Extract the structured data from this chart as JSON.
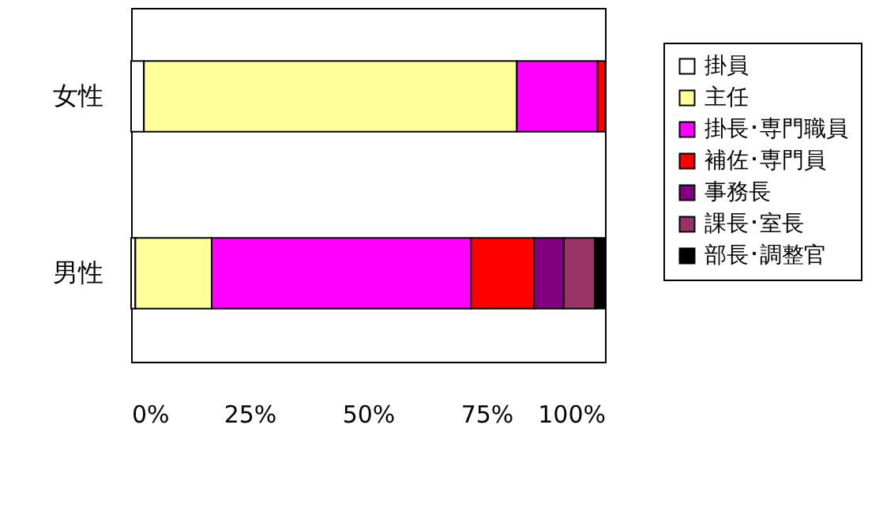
{
  "chart_data": {
    "type": "bar",
    "orientation": "horizontal",
    "stacked": true,
    "categories": [
      "女性",
      "男性"
    ],
    "series": [
      {
        "name": "掛員",
        "color": "#ffffff",
        "values": [
          2.7,
          0.9
        ]
      },
      {
        "name": "主任",
        "color": "#ffff99",
        "values": [
          78.7,
          16.1
        ]
      },
      {
        "name": "掛長･専門職員",
        "color": "#ff00ff",
        "values": [
          17.0,
          54.7
        ]
      },
      {
        "name": "補佐･専門員",
        "color": "#ff0000",
        "values": [
          1.6,
          13.3
        ]
      },
      {
        "name": "事務長",
        "color": "#800080",
        "values": [
          null,
          6.3
        ]
      },
      {
        "name": "課長･室長",
        "color": "#993366",
        "values": [
          null,
          6.6
        ]
      },
      {
        "name": "部長･調整官",
        "color": "#000000",
        "values": [
          null,
          2.1
        ]
      }
    ],
    "xlim": [
      0,
      100
    ],
    "xticks": [
      {
        "value": 0,
        "label": "0%"
      },
      {
        "value": 25,
        "label": "25%"
      },
      {
        "value": 50,
        "label": "50%"
      },
      {
        "value": 75,
        "label": "75%"
      },
      {
        "value": 100,
        "label": "100%"
      }
    ],
    "grid": false,
    "legend": "right"
  }
}
